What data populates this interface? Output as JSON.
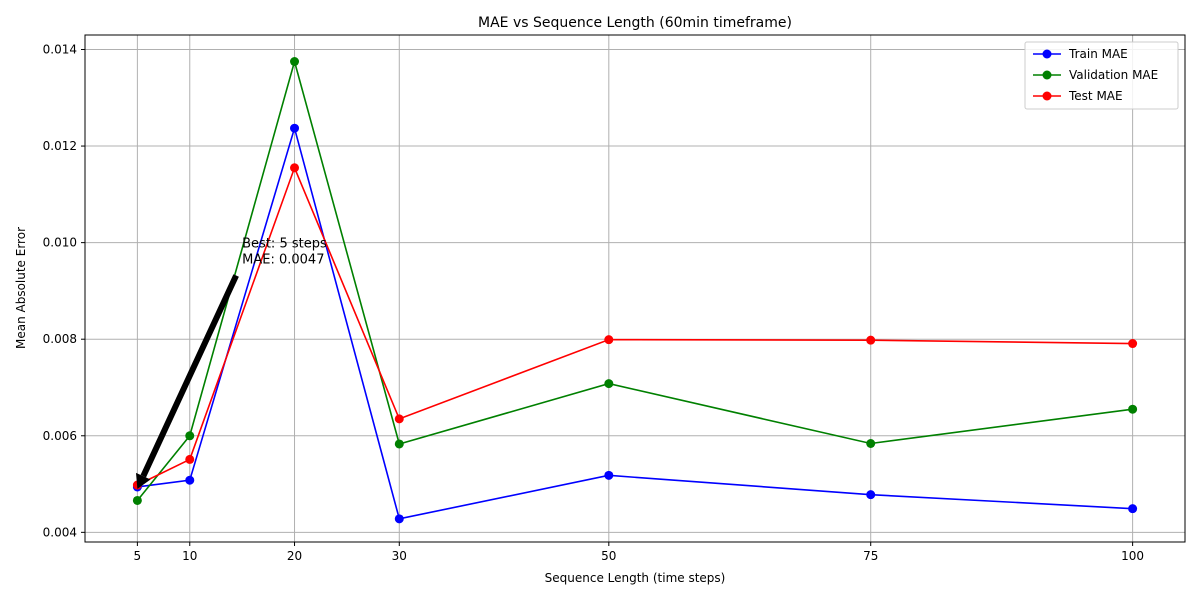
{
  "chart_data": {
    "type": "line",
    "title": "MAE vs Sequence Length (60min timeframe)",
    "xlabel": "Sequence Length (time steps)",
    "ylabel": "Mean Absolute Error",
    "x": [
      5,
      10,
      20,
      30,
      50,
      75,
      100
    ],
    "x_ticks": [
      "5",
      "10",
      "20",
      "30",
      "50",
      "75",
      "100"
    ],
    "y_ticks": [
      "0.004",
      "0.006",
      "0.008",
      "0.010",
      "0.012",
      "0.014"
    ],
    "xlim": [
      0,
      105
    ],
    "ylim": [
      0.0038,
      0.0143
    ],
    "grid": true,
    "legend_position": "top-right",
    "series": [
      {
        "name": "Train MAE",
        "color": "#0000ff",
        "values": [
          0.00494,
          0.00508,
          0.01237,
          0.00428,
          0.00518,
          0.00478,
          0.00449
        ]
      },
      {
        "name": "Validation MAE",
        "color": "#008000",
        "values": [
          0.00466,
          0.006,
          0.01375,
          0.00583,
          0.00708,
          0.00584,
          0.00655
        ]
      },
      {
        "name": "Test MAE",
        "color": "#ff0000",
        "values": [
          0.00498,
          0.00551,
          0.01155,
          0.00635,
          0.00799,
          0.00798,
          0.00791
        ]
      }
    ],
    "annotation": {
      "lines": [
        "Best: 5 steps",
        "MAE: 0.0047"
      ],
      "point_x": 5,
      "point_y": 0.0049,
      "text_x": 15,
      "text_y": 0.0099
    }
  }
}
